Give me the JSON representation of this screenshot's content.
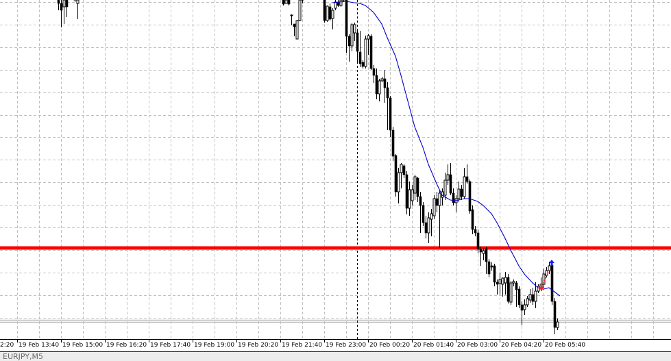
{
  "chart_data": {
    "type": "candlestick",
    "symbol_tab": "EURJPY,M5",
    "colors": {
      "bull_body": "#ffffff",
      "bear_body": "#000000",
      "outline": "#000000",
      "ma_line": "#0000cc",
      "level_line": "#ff0000",
      "grid": "#c0c0c0",
      "bid_ask_lines": "#c0c0c0",
      "separator": "#000000",
      "buy_arrow": "#1a1aff",
      "trade_marker": "#ff2020"
    },
    "grid": true,
    "ylim": [
      5,
      500
    ],
    "x_tick_labels": [
      "19 Feb 12:20",
      "19 Feb 13:40",
      "19 Feb 15:00",
      "19 Feb 16:20",
      "19 Feb 17:40",
      "19 Feb 19:00",
      "19 Feb 20:20",
      "19 Feb 21:40",
      "19 Feb 23:00",
      "20 Feb 00:20",
      "20 Feb 01:40",
      "20 Feb 03:00",
      "20 Feb 04:20",
      "20 Feb 05:40"
    ],
    "x_tick_display": [
      "2:20",
      "19 Feb 13:40",
      "19 Feb 15:00",
      "19 Feb 16:20",
      "19 Feb 17:40",
      "19 Feb 19:00",
      "19 Feb 20:20",
      "19 Feb 21:40",
      "19 Feb 23:00",
      "20 Feb 00:20",
      "20 Feb 01:40",
      "20 Feb 03:00",
      "20 Feb 04:20",
      "20 Feb 05:40"
    ],
    "horizontal_level": 138,
    "bid_ask": [
      33,
      30
    ],
    "period_separator": "20 Feb 00:00",
    "candle_format": [
      "time",
      "open",
      "high",
      "low",
      "close"
    ],
    "candles": [
      {
        "date": "19 Feb",
        "bars": [
          [
            "14:55",
            505,
            510,
            485,
            495
          ],
          [
            "15:00",
            495,
            500,
            460,
            485
          ],
          [
            "15:05",
            490,
            505,
            465,
            500
          ],
          [
            "15:10",
            500,
            505,
            475,
            490
          ],
          [
            "15:25",
            500,
            510,
            497,
            505
          ],
          [
            "15:30",
            495,
            510,
            472,
            500
          ],
          [
            "21:45",
            500,
            505,
            492,
            494
          ],
          [
            "21:50",
            495,
            505,
            495,
            500
          ],
          [
            "21:55",
            500,
            503,
            492,
            494
          ],
          [
            "22:00",
            478,
            479,
            463,
            478
          ],
          [
            "22:05",
            465,
            465,
            447,
            461
          ],
          [
            "22:10",
            443,
            471,
            443,
            470
          ],
          [
            "22:15",
            470,
            505,
            469,
            500
          ],
          [
            "22:20",
            500,
            520,
            495,
            510
          ],
          [
            "23:00",
            505,
            510,
            467,
            470
          ],
          [
            "23:05",
            470,
            492,
            468,
            491
          ],
          [
            "23:10",
            490,
            495,
            470,
            472
          ],
          [
            "23:15",
            473,
            488,
            457,
            485
          ],
          [
            "23:20",
            488,
            500,
            485,
            497
          ],
          [
            "23:25",
            497,
            502,
            490,
            492
          ],
          [
            "23:30",
            492,
            503,
            490,
            500
          ],
          [
            "23:35",
            500,
            505,
            497,
            502
          ],
          [
            "23:40",
            500,
            505,
            423,
            447
          ],
          [
            "23:45",
            447,
            450,
            410,
            433
          ],
          [
            "23:50",
            433,
            466,
            425,
            464
          ],
          [
            "23:55",
            452,
            467,
            440,
            464
          ]
        ]
      },
      {
        "date": "20 Feb",
        "bars": [
          [
            "00:00",
            452,
            455,
            408,
            425
          ],
          [
            "00:05",
            424,
            455,
            402,
            407
          ],
          [
            "00:10",
            409,
            412,
            400,
            403
          ],
          [
            "00:15",
            403,
            448,
            400,
            443
          ],
          [
            "00:20",
            443,
            450,
            420,
            448
          ],
          [
            "00:25",
            447,
            450,
            398,
            400
          ],
          [
            "00:30",
            400,
            405,
            379,
            390
          ],
          [
            "00:35",
            390,
            400,
            355,
            363
          ],
          [
            "00:40",
            363,
            385,
            352,
            382
          ],
          [
            "00:45",
            382,
            388,
            380,
            385
          ],
          [
            "00:50",
            385,
            398,
            350,
            372
          ],
          [
            "00:55",
            372,
            380,
            310,
            357
          ],
          [
            "01:00",
            357,
            360,
            300,
            310
          ],
          [
            "01:05",
            310,
            315,
            265,
            272
          ],
          [
            "01:10",
            273,
            275,
            213,
            220
          ],
          [
            "01:15",
            220,
            255,
            203,
            248
          ],
          [
            "01:20",
            248,
            262,
            225,
            260
          ],
          [
            "01:25",
            258,
            260,
            240,
            245
          ],
          [
            "01:30",
            245,
            250,
            187,
            196
          ],
          [
            "01:35",
            196,
            235,
            185,
            223
          ],
          [
            "01:40",
            207,
            230,
            200,
            223
          ],
          [
            "01:45",
            218,
            245,
            208,
            242
          ],
          [
            "01:50",
            240,
            242,
            205,
            213
          ],
          [
            "01:55",
            213,
            220,
            160,
            200
          ],
          [
            "02:00",
            200,
            205,
            170,
            175
          ],
          [
            "02:05",
            175,
            185,
            152,
            160
          ],
          [
            "02:10",
            160,
            190,
            145,
            182
          ],
          [
            "02:15",
            180,
            195,
            155,
            188
          ],
          [
            "02:20",
            185,
            215,
            180,
            210
          ],
          [
            "02:25",
            210,
            220,
            190,
            200
          ],
          [
            "02:30",
            200,
            222,
            138,
            218
          ],
          [
            "02:35",
            212,
            225,
            200,
            220
          ],
          [
            "02:40",
            215,
            248,
            208,
            237
          ],
          [
            "02:45",
            237,
            260,
            230,
            245
          ],
          [
            "02:50",
            245,
            262,
            215,
            218
          ],
          [
            "02:55",
            218,
            225,
            200,
            204
          ],
          [
            "03:00",
            204,
            215,
            190,
            210
          ],
          [
            "03:05",
            210,
            235,
            205,
            224
          ],
          [
            "03:10",
            224,
            230,
            208,
            213
          ],
          [
            "03:15",
            213,
            255,
            210,
            242
          ],
          [
            "03:20",
            242,
            260,
            232,
            235
          ],
          [
            "03:25",
            235,
            238,
            188,
            192
          ],
          [
            "03:30",
            194,
            200,
            158,
            165
          ],
          [
            "03:35",
            165,
            170,
            155,
            160
          ],
          [
            "03:40",
            160,
            165,
            130,
            136
          ],
          [
            "03:45",
            136,
            140,
            112,
            132
          ],
          [
            "03:50",
            130,
            138,
            120,
            134
          ],
          [
            "03:55",
            137,
            140,
            100,
            118
          ],
          [
            "04:00",
            118,
            122,
            95,
            100
          ],
          [
            "04:05",
            112,
            117,
            105,
            110
          ],
          [
            "04:10",
            112,
            115,
            82,
            88
          ],
          [
            "04:15",
            88,
            92,
            70,
            85
          ],
          [
            "04:20",
            86,
            102,
            70,
            92
          ],
          [
            "04:25",
            85,
            95,
            67,
            94
          ],
          [
            "04:30",
            87,
            103,
            70,
            95
          ],
          [
            "04:35",
            95,
            100,
            57,
            60
          ],
          [
            "04:40",
            59,
            90,
            55,
            87
          ],
          [
            "04:45",
            87,
            92,
            82,
            89
          ],
          [
            "04:50",
            87,
            90,
            52,
            77
          ],
          [
            "04:55",
            78,
            82,
            50,
            55
          ],
          [
            "05:00",
            55,
            60,
            25,
            47
          ],
          [
            "05:05",
            48,
            63,
            40,
            55
          ],
          [
            "05:10",
            55,
            68,
            52,
            64
          ],
          [
            "05:15",
            62,
            78,
            58,
            70
          ],
          [
            "05:20",
            70,
            80,
            55,
            60
          ],
          [
            "05:25",
            60,
            88,
            50,
            75
          ],
          [
            "05:30",
            75,
            85,
            72,
            82
          ],
          [
            "05:35",
            80,
            95,
            75,
            85
          ],
          [
            "05:40",
            85,
            108,
            80,
            100
          ],
          [
            "05:45",
            98,
            110,
            95,
            105
          ],
          [
            "05:50",
            105,
            118,
            100,
            112
          ],
          [
            "05:55",
            113,
            120,
            55,
            60
          ],
          [
            "06:00",
            60,
            65,
            12,
            22
          ],
          [
            "06:05",
            22,
            35,
            18,
            30
          ]
        ]
      }
    ],
    "moving_average": [
      [
        "19 Feb 23:15",
        496
      ],
      [
        "19 Feb 23:40",
        498
      ],
      [
        "19 Feb 23:55",
        496
      ],
      [
        "20 Feb 00:05",
        495
      ],
      [
        "20 Feb 00:15",
        492
      ],
      [
        "20 Feb 00:30",
        482
      ],
      [
        "20 Feb 00:45",
        465
      ],
      [
        "20 Feb 00:55",
        445
      ],
      [
        "20 Feb 01:10",
        418
      ],
      [
        "20 Feb 01:20",
        390
      ],
      [
        "20 Feb 01:35",
        345
      ],
      [
        "20 Feb 01:45",
        315
      ],
      [
        "20 Feb 02:00",
        285
      ],
      [
        "20 Feb 02:10",
        260
      ],
      [
        "20 Feb 02:25",
        232
      ],
      [
        "20 Feb 02:35",
        215
      ],
      [
        "20 Feb 02:50",
        208
      ],
      [
        "20 Feb 03:00",
        207
      ],
      [
        "20 Feb 03:15",
        210
      ],
      [
        "20 Feb 03:25",
        210
      ],
      [
        "20 Feb 03:40",
        206
      ],
      [
        "20 Feb 03:50",
        200
      ],
      [
        "20 Feb 04:05",
        188
      ],
      [
        "20 Feb 04:15",
        175
      ],
      [
        "20 Feb 04:30",
        152
      ],
      [
        "20 Feb 04:40",
        135
      ],
      [
        "20 Feb 04:55",
        112
      ],
      [
        "20 Feb 05:05",
        100
      ],
      [
        "20 Feb 05:20",
        87
      ],
      [
        "20 Feb 05:30",
        80
      ],
      [
        "20 Feb 05:40",
        78
      ],
      [
        "20 Feb 05:50",
        80
      ],
      [
        "20 Feb 06:00",
        74
      ],
      [
        "20 Feb 06:10",
        68
      ]
    ],
    "trade": {
      "buy_arrow": [
        "20 Feb 05:55",
        116
      ],
      "entry_marker": [
        "20 Feb 05:35",
        79
      ],
      "link_line": [
        [
          "20 Feb 05:35",
          79
        ],
        [
          "20 Feb 05:50",
          105
        ]
      ]
    }
  }
}
